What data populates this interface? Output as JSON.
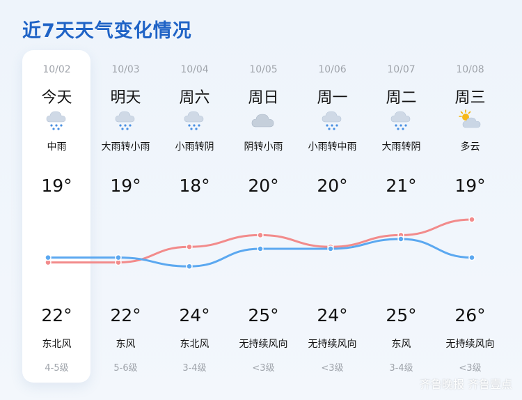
{
  "title": "近7天天气变化情况",
  "days": [
    {
      "date": "10/02",
      "weekday": "今天",
      "icon": "rain-icon",
      "condition": "中雨",
      "high": "19°",
      "low": "22°",
      "wind": "东北风",
      "level": "4-5级"
    },
    {
      "date": "10/03",
      "weekday": "明天",
      "icon": "rain-icon",
      "condition": "大雨转小雨",
      "high": "19°",
      "low": "22°",
      "wind": "东风",
      "level": "5-6级"
    },
    {
      "date": "10/04",
      "weekday": "周六",
      "icon": "rain-icon",
      "condition": "小雨转阴",
      "high": "18°",
      "low": "24°",
      "wind": "东北风",
      "level": "3-4级"
    },
    {
      "date": "10/05",
      "weekday": "周日",
      "icon": "cloud-icon",
      "condition": "阴转小雨",
      "high": "20°",
      "low": "25°",
      "wind": "无持续风向",
      "level": "<3级"
    },
    {
      "date": "10/06",
      "weekday": "周一",
      "icon": "rain-icon",
      "condition": "小雨转中雨",
      "high": "20°",
      "low": "24°",
      "wind": "无持续风向",
      "level": "<3级"
    },
    {
      "date": "10/07",
      "weekday": "周二",
      "icon": "rain-icon",
      "condition": "大雨转阴",
      "high": "21°",
      "low": "25°",
      "wind": "东风",
      "level": "3-4级"
    },
    {
      "date": "10/08",
      "weekday": "周三",
      "icon": "partly-cloudy-icon",
      "condition": "多云",
      "high": "19°",
      "low": "26°",
      "wind": "无持续风向",
      "level": "<3级"
    }
  ],
  "lines": {
    "upper_color": "#f28b8b",
    "lower_color": "#5ba8f0",
    "upper_levels": [
      0.31,
      0.31,
      0.47,
      0.59,
      0.47,
      0.59,
      0.75
    ],
    "lower_levels": [
      0.36,
      0.36,
      0.27,
      0.45,
      0.45,
      0.55,
      0.36
    ]
  },
  "watermark": "齐鲁晚报 齐鲁壹点"
}
